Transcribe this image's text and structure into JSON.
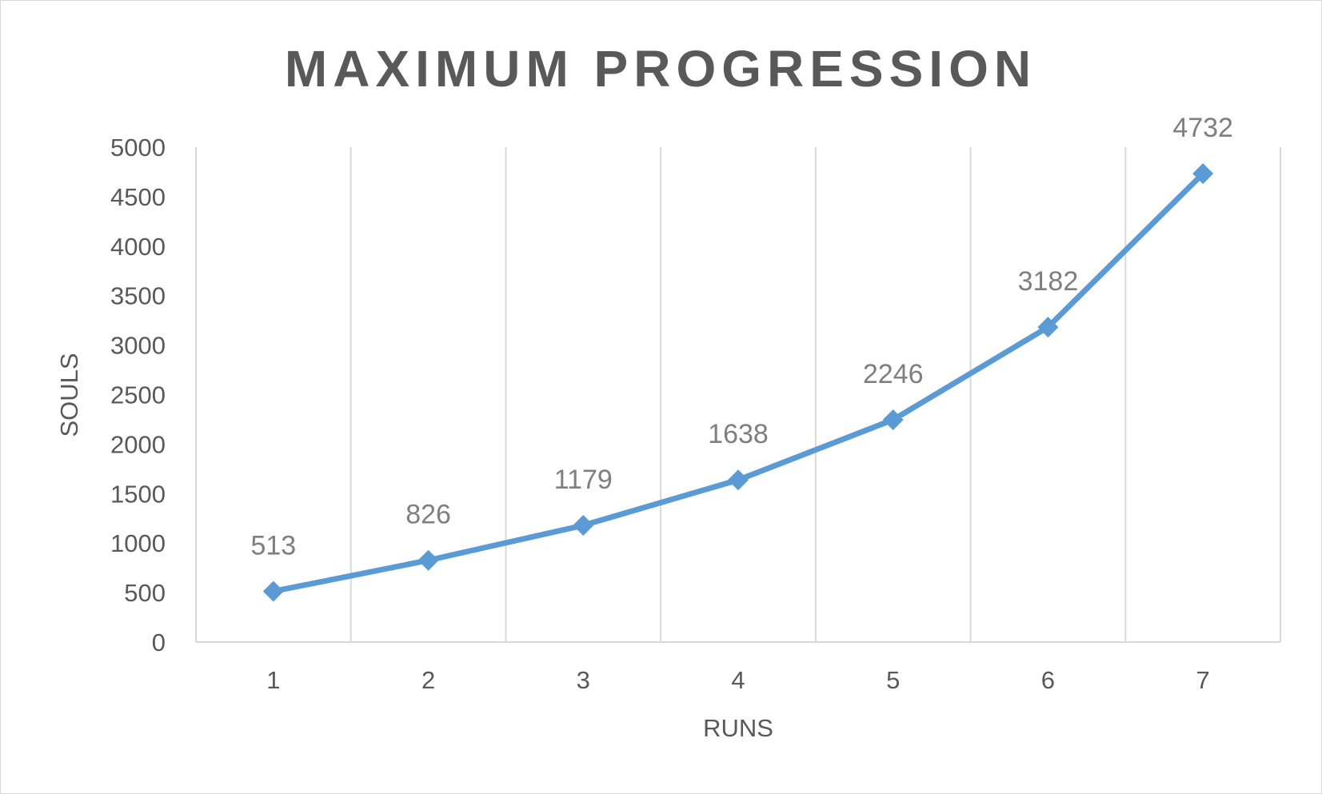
{
  "chart_data": {
    "type": "line",
    "title": "MAXIMUM PROGRESSION",
    "xlabel": "RUNS",
    "ylabel": "SOULS",
    "categories": [
      "1",
      "2",
      "3",
      "4",
      "5",
      "6",
      "7"
    ],
    "series": [
      {
        "values": [
          513,
          826,
          1179,
          1638,
          2246,
          3182,
          4732
        ],
        "color": "#5b9bd5",
        "marker": "diamond"
      }
    ],
    "data_labels": [
      "513",
      "826",
      "1179",
      "1638",
      "2246",
      "3182",
      "4732"
    ],
    "ylim": [
      0,
      5000
    ],
    "yticks": [
      "0",
      "500",
      "1000",
      "1500",
      "2000",
      "2500",
      "3000",
      "3500",
      "4000",
      "4500",
      "5000"
    ],
    "grid": {
      "vertical": true,
      "horizontal": false
    },
    "legend": "none"
  }
}
